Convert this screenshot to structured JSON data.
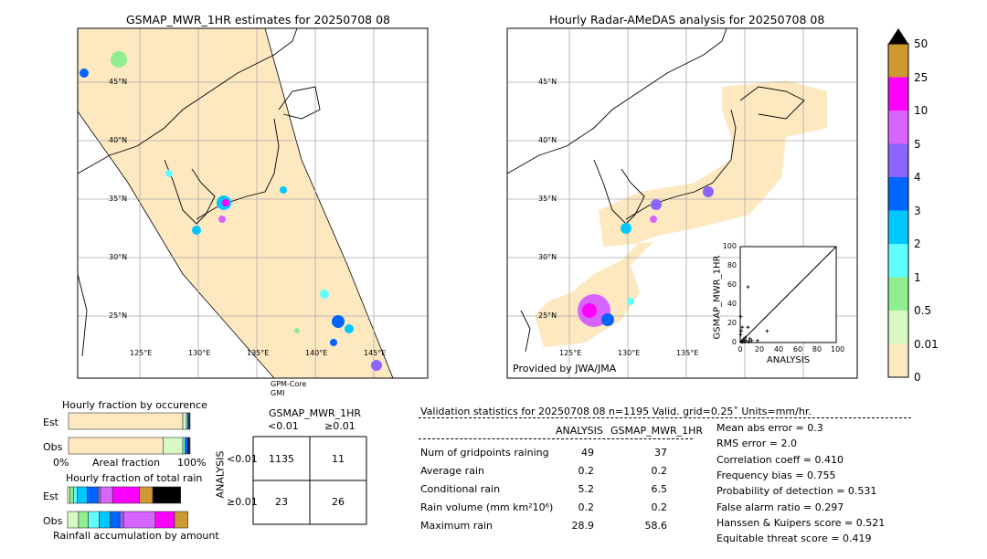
{
  "left_map": {
    "title": "GSMAP_MWR_1HR estimates for 20250708 08",
    "lat_labels": [
      "45°N",
      "40°N",
      "35°N",
      "30°N",
      "25°N"
    ],
    "lon_labels": [
      "125°E",
      "130°E",
      "135°E",
      "140°E",
      "145°E"
    ],
    "sensor_labels": [
      "GPM-Core",
      "GMI"
    ]
  },
  "right_map": {
    "title": "Hourly Radar-AMeDAS analysis for 20250708 08",
    "lat_labels": [
      "45°N",
      "40°N",
      "35°N",
      "30°N",
      "25°N"
    ],
    "lon_labels": [
      "125°E",
      "130°E",
      "135°E"
    ],
    "credit": "Provided by JWA/JMA"
  },
  "colorbar": {
    "levels": [
      "0",
      "0.01",
      "0.5",
      "1",
      "2",
      "3",
      "4",
      "5",
      "10",
      "25",
      "50"
    ],
    "colors": [
      "#fde8c0",
      "#d8f8c4",
      "#90ee90",
      "#60ffff",
      "#00c8ff",
      "#0064ff",
      "#8c64ff",
      "#d864ff",
      "#ff00ff",
      "#cc9933"
    ],
    "extend_color": "#000000"
  },
  "chart_data": [
    {
      "type": "scatter",
      "xlabel": "ANALYSIS",
      "ylabel": "GSMAP_MWR_1HR",
      "xlim": [
        0,
        100
      ],
      "ylim": [
        0,
        100
      ],
      "ticks": [
        "0",
        "20",
        "40",
        "60",
        "80",
        "100"
      ],
      "points": [
        [
          8,
          58
        ],
        [
          0.5,
          27
        ],
        [
          2,
          16
        ],
        [
          8,
          16
        ],
        [
          28,
          12
        ],
        [
          18,
          2
        ],
        [
          10,
          4
        ],
        [
          5,
          5
        ],
        [
          3,
          3
        ],
        [
          1,
          1
        ],
        [
          2,
          0.5
        ],
        [
          4,
          1
        ],
        [
          6,
          2
        ],
        [
          0.5,
          8
        ],
        [
          1,
          12
        ],
        [
          9,
          1
        ],
        [
          12,
          2
        ]
      ]
    },
    {
      "type": "bar",
      "title": "Hourly fraction by occurence",
      "categories": [
        "Est",
        "Obs"
      ],
      "xlabel": "Areal fraction",
      "xtick_labels": [
        "0%",
        "100%"
      ],
      "series_fractions": {
        "Est": [
          0.94,
          0.03,
          0.01,
          0.01,
          0.01
        ],
        "Obs": [
          0.78,
          0.16,
          0.02,
          0.02,
          0.02
        ]
      }
    },
    {
      "type": "bar",
      "title": "Hourly fraction of total rain",
      "categories": [
        "Est",
        "Obs"
      ],
      "xlabel": "Rainfall accumulation by amount",
      "series_fractions": {
        "Est": [
          0.02,
          0.03,
          0.03,
          0.08,
          0.09,
          0.02,
          0.1,
          0.22,
          0.11,
          0.23
        ],
        "Obs": [
          0.09,
          0.08,
          0.09,
          0.09,
          0.08,
          0.03,
          0.26,
          0.16,
          0.11,
          0
        ]
      }
    }
  ],
  "contingency": {
    "title": "GSMAP_MWR_1HR",
    "col_labels": [
      "<0.01",
      "≥0.01"
    ],
    "row_axis": "ANALYSIS",
    "row_labels": [
      "<0.01",
      "≥0.01"
    ],
    "cells": [
      [
        "1135",
        "11"
      ],
      [
        "23",
        "26"
      ]
    ]
  },
  "stats": {
    "header": "Validation statistics for 20250708 08  n=1195 Valid. grid=0.25˚ Units=mm/hr.",
    "col_headers": [
      "ANALYSIS",
      "GSMAP_MWR_1HR"
    ],
    "rows": [
      {
        "label": "Num of gridpoints raining",
        "a": "49",
        "b": "37"
      },
      {
        "label": "Average rain",
        "a": "0.2",
        "b": "0.2"
      },
      {
        "label": "Conditional rain",
        "a": "5.2",
        "b": "6.5"
      },
      {
        "label": "Rain volume (mm km²10⁶)",
        "a": "0.2",
        "b": "0.2"
      },
      {
        "label": "Maximum rain",
        "a": "28.9",
        "b": "58.6"
      }
    ],
    "scores": [
      "Mean abs error =    0.3",
      "RMS error =    2.0",
      "Correlation coeff =  0.410",
      "Frequency bias =  0.755",
      "Probability of detection =  0.531",
      "False alarm ratio =  0.297",
      "Hanssen & Kuipers score =  0.521",
      "Equitable threat score =  0.419"
    ]
  }
}
